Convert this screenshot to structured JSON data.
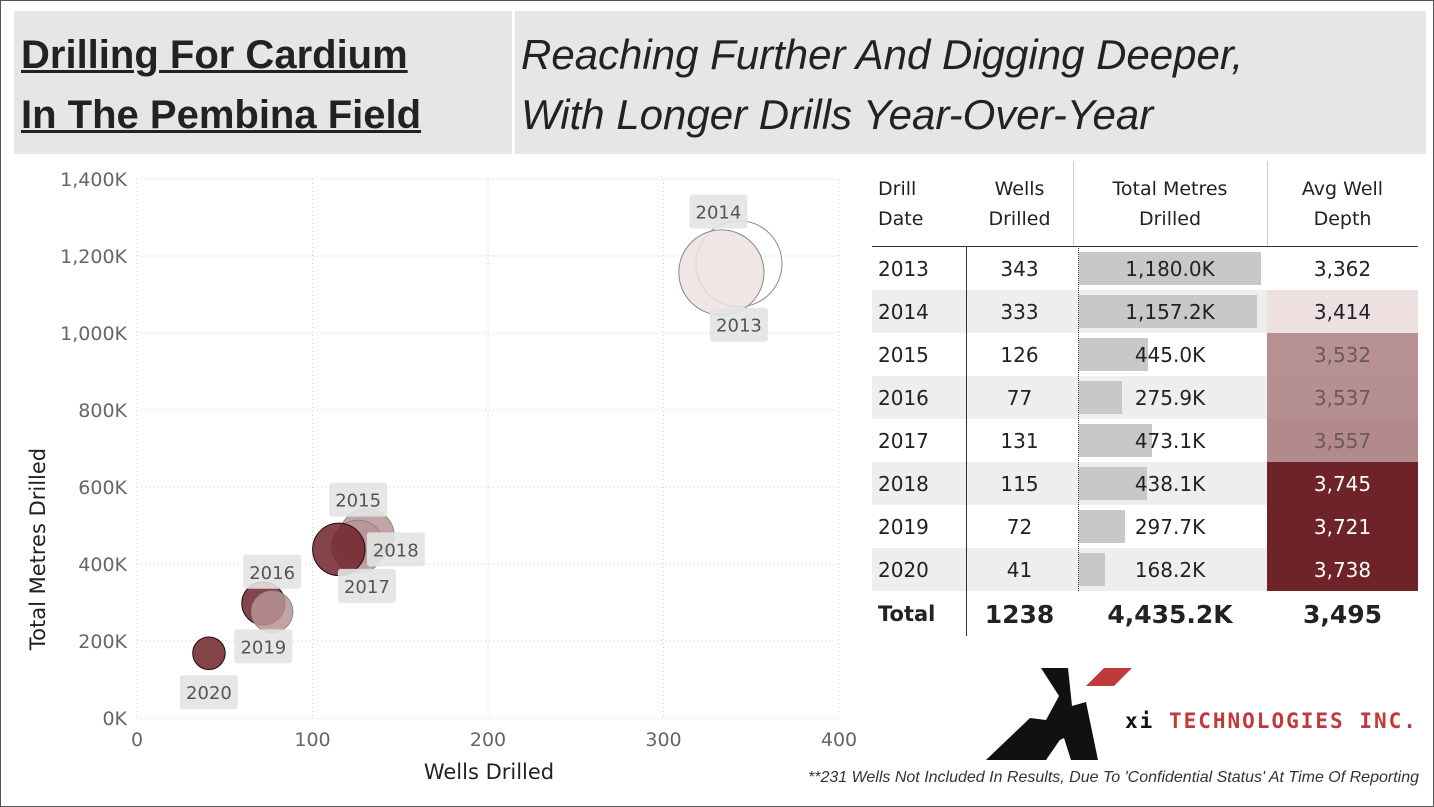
{
  "header": {
    "title_line1": "Drilling For Cardium ",
    "title_line2": "In The Pembina Field",
    "subtitle_line1": "Reaching Further And Digging Deeper,",
    "subtitle_line2": "With Longer Drills Year-Over-Year"
  },
  "chart_data": {
    "type": "scatter",
    "xlabel": "Wells Drilled",
    "ylabel": "Total Metres Drilled",
    "xlim": [
      0,
      400
    ],
    "ylim": [
      0,
      1400000
    ],
    "xticks": [
      "0",
      "100",
      "200",
      "300",
      "400"
    ],
    "yticks": [
      "0K",
      "200K",
      "400K",
      "600K",
      "800K",
      "1,000K",
      "1,200K",
      "1,400K"
    ],
    "grid": true,
    "size_by": "Total Metres Drilled",
    "color_by": "Avg Well Depth",
    "points": [
      {
        "label": "2013",
        "x": 343,
        "y": 1180000,
        "color": "#ffffff"
      },
      {
        "label": "2014",
        "x": 333,
        "y": 1157200,
        "color": "#eee2e2"
      },
      {
        "label": "2015",
        "x": 126,
        "y": 445000,
        "color": "#b89495"
      },
      {
        "label": "2016",
        "x": 77,
        "y": 275900,
        "color": "#b89495"
      },
      {
        "label": "2017",
        "x": 131,
        "y": 473100,
        "color": "#b89495"
      },
      {
        "label": "2018",
        "x": 115,
        "y": 438100,
        "color": "#6e2329"
      },
      {
        "label": "2019",
        "x": 72,
        "y": 297700,
        "color": "#6e2329"
      },
      {
        "label": "2020",
        "x": 41,
        "y": 168200,
        "color": "#6e2329"
      }
    ]
  },
  "table": {
    "headers": [
      "Drill\nDate",
      "Wells\nDrilled",
      "Total Metres\nDrilled",
      "Avg Well\nDepth"
    ],
    "rows": [
      {
        "date": "2013",
        "wells": "343",
        "metres": "1,180.0K",
        "metres_value": 1180.0,
        "depth": "3,362",
        "depth_bg": "#ffffff",
        "depth_fg": "#222222"
      },
      {
        "date": "2014",
        "wells": "333",
        "metres": "1,157.2K",
        "metres_value": 1157.2,
        "depth": "3,414",
        "depth_bg": "#eee0e0",
        "depth_fg": "#222222"
      },
      {
        "date": "2015",
        "wells": "126",
        "metres": "445.0K",
        "metres_value": 445.0,
        "depth": "3,532",
        "depth_bg": "#b89192",
        "depth_fg": "#6a5a5a"
      },
      {
        "date": "2016",
        "wells": "77",
        "metres": "275.9K",
        "metres_value": 275.9,
        "depth": "3,537",
        "depth_bg": "#b68f90",
        "depth_fg": "#6a5a5a"
      },
      {
        "date": "2017",
        "wells": "131",
        "metres": "473.1K",
        "metres_value": 473.1,
        "depth": "3,557",
        "depth_bg": "#b38a8b",
        "depth_fg": "#6a5a5a"
      },
      {
        "date": "2018",
        "wells": "115",
        "metres": "438.1K",
        "metres_value": 438.1,
        "depth": "3,745",
        "depth_bg": "#6e2329",
        "depth_fg": "#ffffff"
      },
      {
        "date": "2019",
        "wells": "72",
        "metres": "297.7K",
        "metres_value": 297.7,
        "depth": "3,721",
        "depth_bg": "#6e2329",
        "depth_fg": "#ffffff"
      },
      {
        "date": "2020",
        "wells": "41",
        "metres": "168.2K",
        "metres_value": 168.2,
        "depth": "3,738",
        "depth_bg": "#6e2329",
        "depth_fg": "#ffffff"
      }
    ],
    "total": {
      "label": "Total",
      "wells": "1238",
      "metres": "4,435.2K",
      "depth": "3,495"
    }
  },
  "logo": {
    "text_prefix": "xi",
    "text_main": "TECHNOLOGIES INC.",
    "red": "#c0393b"
  },
  "footnote": "**231 Wells Not Included In Results, Due To 'Confidential Status' At Time Of Reporting"
}
